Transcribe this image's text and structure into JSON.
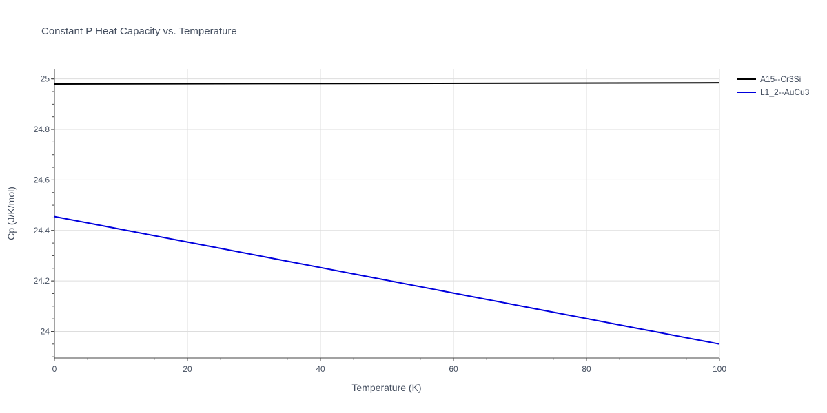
{
  "chart_data": {
    "type": "line",
    "title": "Constant P Heat Capacity vs. Temperature",
    "xlabel": "Temperature (K)",
    "ylabel": "Cp (J/K/mol)",
    "xlim": [
      0,
      100
    ],
    "ylim": [
      23.895,
      25.04
    ],
    "xticks": [
      0,
      20,
      40,
      60,
      80,
      100
    ],
    "yticks": [
      24,
      24.2,
      24.4,
      24.6,
      24.8,
      25
    ],
    "ytick_labels": [
      "24",
      "24.2",
      "24.4",
      "24.6",
      "24.8",
      "25"
    ],
    "grid": true,
    "legend_position": "top-right, outside plot",
    "series": [
      {
        "name": "A15--Cr3Si",
        "color": "#000000",
        "x": [
          0,
          100
        ],
        "y": [
          24.98,
          24.985
        ]
      },
      {
        "name": "L1_2--AuCu3",
        "color": "#0000dd",
        "x": [
          0,
          100
        ],
        "y": [
          24.455,
          23.95
        ]
      }
    ]
  }
}
